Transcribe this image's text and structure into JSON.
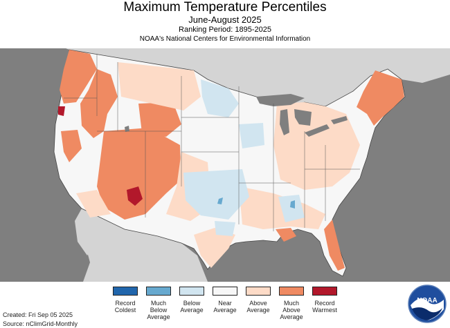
{
  "header": {
    "title": "Maximum Temperature Percentiles",
    "subtitle": "June-August 2025",
    "ranking_period": "Ranking Period: 1895-2025",
    "source_org": "NOAA's National Centers for Environmental Information"
  },
  "legend": [
    {
      "label": "Record\nColdest",
      "color": "#2166ac"
    },
    {
      "label": "Much\nBelow\nAverage",
      "color": "#67a9cf"
    },
    {
      "label": "Below\nAverage",
      "color": "#d1e5f0"
    },
    {
      "label": "Near\nAverage",
      "color": "#f7f7f7"
    },
    {
      "label": "Above\nAverage",
      "color": "#fddbc7"
    },
    {
      "label": "Much\nAbove\nAverage",
      "color": "#ef8a62"
    },
    {
      "label": "Record\nWarmest",
      "color": "#b2182b"
    }
  ],
  "footer": {
    "created": "Created: Fri Sep 05 2025",
    "source": "Source: nClimGrid-Monthly"
  },
  "logo": {
    "text": "NOAA"
  },
  "colors": {
    "ocean": "#7f7f7f",
    "land_outside": "#d4d4d4",
    "lakes": "#7f7f7f",
    "record_coldest": "#2166ac",
    "much_below": "#67a9cf",
    "below": "#d1e5f0",
    "near": "#f7f7f7",
    "above": "#fddbc7",
    "much_above": "#ef8a62",
    "record_warmest": "#b2182b"
  }
}
